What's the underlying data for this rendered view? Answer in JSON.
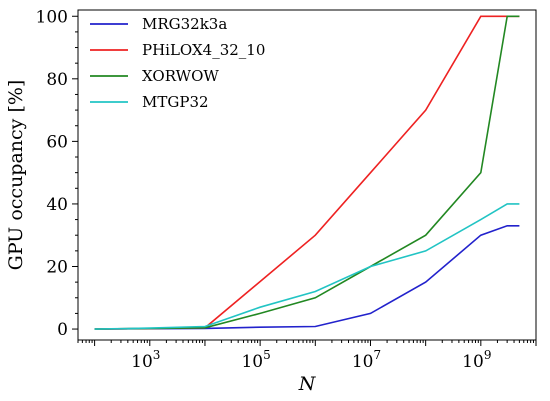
{
  "chart_data": {
    "type": "line",
    "xlabel": "N",
    "ylabel": "GPU occupancy [%]",
    "x_scale": "log",
    "xlim": [
      50,
      10000000000
    ],
    "ylim": [
      -3.5,
      102
    ],
    "x_ticks": [
      {
        "value": 1000,
        "base": "10",
        "exp": "3"
      },
      {
        "value": 100000,
        "base": "10",
        "exp": "5"
      },
      {
        "value": 10000000,
        "base": "10",
        "exp": "7"
      },
      {
        "value": 1000000000,
        "base": "10",
        "exp": "9"
      }
    ],
    "y_ticks": [
      0,
      20,
      40,
      60,
      80,
      100
    ],
    "grid": false,
    "legend_position": "top-left",
    "series": [
      {
        "name": "MRG32k3a",
        "color": "#2222cc",
        "points": [
          [
            100,
            0
          ],
          [
            1000,
            0.1
          ],
          [
            10000,
            0.2
          ],
          [
            100000,
            0.6
          ],
          [
            1000000,
            0.8
          ],
          [
            10000000,
            5
          ],
          [
            100000000,
            15
          ],
          [
            1000000000,
            30
          ],
          [
            3000000000,
            33
          ],
          [
            5000000000,
            33
          ]
        ]
      },
      {
        "name": "PHiLOX4_32_10",
        "color": "#ee2222",
        "points": [
          [
            100,
            0
          ],
          [
            1000,
            0.2
          ],
          [
            10000,
            0.4
          ],
          [
            1000000,
            30
          ],
          [
            10000000,
            50
          ],
          [
            100000000,
            70
          ],
          [
            1000000000,
            100
          ],
          [
            3000000000,
            100
          ],
          [
            5000000000,
            100
          ]
        ]
      },
      {
        "name": "XORWOW",
        "color": "#228822",
        "points": [
          [
            100,
            0
          ],
          [
            1000,
            0.2
          ],
          [
            10000,
            0.4
          ],
          [
            100000,
            5
          ],
          [
            1000000,
            10
          ],
          [
            10000000,
            20
          ],
          [
            100000000,
            30
          ],
          [
            1000000000,
            50
          ],
          [
            3000000000,
            100
          ],
          [
            5000000000,
            100
          ]
        ]
      },
      {
        "name": "MTGP32",
        "color": "#22c4c4",
        "points": [
          [
            100,
            0
          ],
          [
            1000,
            0.3
          ],
          [
            10000,
            0.8
          ],
          [
            100000,
            7
          ],
          [
            1000000,
            12
          ],
          [
            10000000,
            20
          ],
          [
            100000000,
            25
          ],
          [
            1000000000,
            35
          ],
          [
            3000000000,
            40
          ],
          [
            5000000000,
            40
          ]
        ]
      }
    ]
  }
}
